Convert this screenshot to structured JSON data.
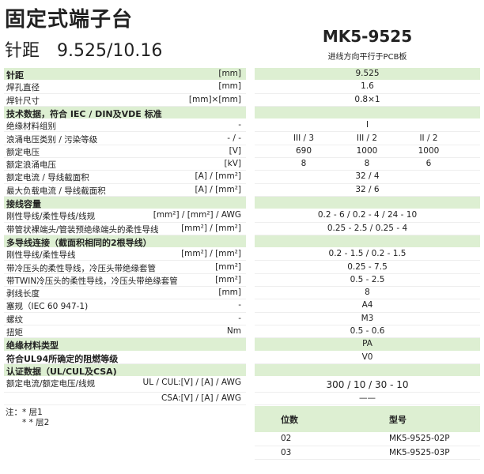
{
  "title": "固定式端子台",
  "subtitle": "针距　9.525/10.16",
  "model": "MK5-9525",
  "model_note": "进线方向平行于PCB板",
  "rows": [
    {
      "name": "针距",
      "unit": "[mm]",
      "value": "9.525",
      "group": true
    },
    {
      "name": "焊孔直径",
      "unit": "[mm]",
      "value": "1.6"
    },
    {
      "name": "焊针尺寸",
      "unit": "[mm]×[mm]",
      "value": "0.8×1"
    },
    {
      "name": "技术数据，符合 IEC / DIN及VDE 标准",
      "group": true
    },
    {
      "name": "绝缘材料组别",
      "unit": "-",
      "value": "I"
    },
    {
      "name": "浪涌电压类别 / 污染等级",
      "unit": "- / -",
      "values": [
        "III / 3",
        "III / 2",
        "II / 2"
      ]
    },
    {
      "name": "额定电压",
      "unit": "[V]",
      "values": [
        "690",
        "1000",
        "1000"
      ]
    },
    {
      "name": "额定浪涌电压",
      "unit": "[kV]",
      "values": [
        "8",
        "8",
        "6"
      ]
    },
    {
      "name": "额定电流 / 导线截面积",
      "unit": "[A] / [mm²]",
      "value": "32 / 4"
    },
    {
      "name": "最大负载电流 / 导线截面积",
      "unit": "[A] / [mm²]",
      "value": "32 / 6"
    },
    {
      "name": "接线容量",
      "group": true
    },
    {
      "name": "刚性导线/柔性导线/线规",
      "unit": "[mm²] / [mm²] / AWG",
      "value": "0.2 - 6 / 0.2 - 4 / 24 - 10"
    },
    {
      "name": "带管状裸端头/管装预绝缘端头的柔性导线",
      "unit": "[mm²] / [mm²]",
      "value": "0.25 - 2.5 / 0.25 - 4"
    },
    {
      "name": "多导线连接（截面积相同的2根导线）",
      "group": true
    },
    {
      "name": "刚性导线/柔性导线",
      "unit": "[mm²] / [mm²]",
      "value": "0.2 - 1.5 / 0.2 - 1.5"
    },
    {
      "name": "带冷压头的柔性导线，冷压头带绝缘套管",
      "unit": "[mm²]",
      "value": "0.25 - 7.5"
    },
    {
      "name": "带TWIN冷压头的柔性导线，冷压头带绝缘套管",
      "unit": "[mm²]",
      "value": "0.5 - 2.5"
    },
    {
      "name": "剥线长度",
      "unit": "[mm]",
      "value": "8"
    },
    {
      "name": "塞规（IEC 60 947-1)",
      "unit": "-",
      "value": "A4"
    },
    {
      "name": "螺纹",
      "unit": "-",
      "value": "M3"
    },
    {
      "name": "扭矩",
      "unit": "Nm",
      "value": "0.5 - 0.6"
    },
    {
      "name": "绝缘材料类型",
      "value": "PA",
      "group": true
    },
    {
      "name": "符合UL94所确定的阻燃等级",
      "value": "V0",
      "bold": true
    },
    {
      "name": "认证数据（UL/CUL及CSA)",
      "group": true
    },
    {
      "name": "额定电流/额定电压/线规",
      "unit": "UL / CUL:[V] / [A] / AWG",
      "value": "300 / 10 / 30 - 10",
      "tall": true
    },
    {
      "name": "",
      "unit": "CSA:[V] / [A] / AWG",
      "value": "——"
    }
  ],
  "notes": [
    "注：* 层1",
    "　　* * 层2"
  ],
  "parts": {
    "headers": [
      "位数",
      "型号"
    ],
    "rows": [
      [
        "02",
        "MK5-9525-02P"
      ],
      [
        "03",
        "MK5-9525-03P"
      ]
    ]
  },
  "colors": {
    "group_bg": "#ddefd2"
  }
}
